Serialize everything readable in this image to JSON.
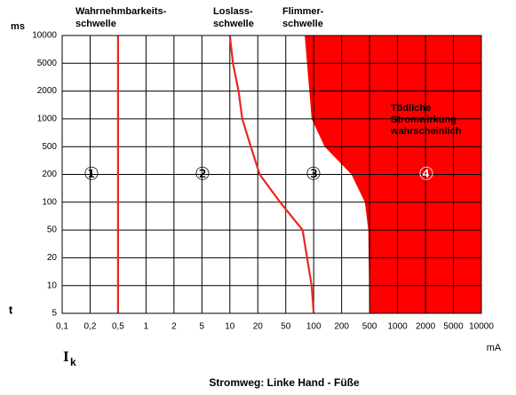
{
  "chart_data": {
    "type": "line",
    "title": "Stromweg: Linke Hand - Füße",
    "xscale": "log",
    "yscale": "log",
    "grid": true,
    "x_label": "mA",
    "y_label": "ms",
    "y_axis_symbol": "t",
    "x_axis_symbol": "I",
    "x_axis_symbol_subscript": "k",
    "xlim": [
      0.1,
      10000
    ],
    "ylim": [
      5,
      10000
    ],
    "xticks": [
      {
        "value": 0.1,
        "label": "0,1"
      },
      {
        "value": 0.2,
        "label": "0,2"
      },
      {
        "value": 0.5,
        "label": "0,5"
      },
      1,
      2,
      5,
      10,
      20,
      50,
      100,
      200,
      500,
      1000,
      2000,
      5000,
      10000
    ],
    "yticks": [
      5,
      10,
      20,
      50,
      100,
      200,
      500,
      1000,
      2000,
      5000,
      10000
    ],
    "series": [
      {
        "label": [
          "Wahrnehmbarkeits-",
          "schwelle"
        ],
        "color": "#e8281e",
        "x": [
          0.5,
          0.5
        ],
        "values": [
          10000,
          5
        ]
      },
      {
        "label": [
          "Loslass-",
          "schwelle"
        ],
        "color": "#e8281e",
        "x": [
          10,
          10.8,
          12.4,
          13.6,
          16.8,
          21.3,
          41.6,
          76,
          85,
          95,
          100
        ],
        "values": [
          10000,
          5000,
          2000,
          1000,
          500,
          200,
          100,
          50,
          20,
          10,
          5
        ]
      },
      {
        "label": [
          "Flimmer-",
          "schwelle"
        ],
        "color": "#ff0000",
        "fill": "right",
        "x": [
          80,
          95,
          131,
          276,
          428,
          480,
          500
        ],
        "values": [
          10000,
          1000,
          500,
          200,
          100,
          50,
          5
        ]
      }
    ],
    "zone_labels": [
      "①",
      "②",
      "③",
      "④"
    ],
    "annotation": [
      "Tödliche",
      "Stromwirkung",
      "wahrscheinlich"
    ]
  }
}
